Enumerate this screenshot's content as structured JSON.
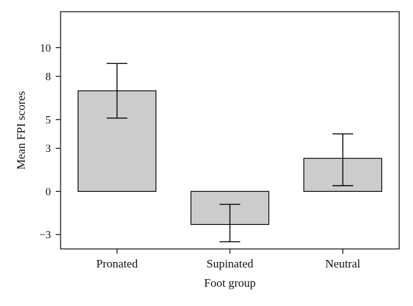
{
  "chart_data": {
    "type": "bar",
    "categories": [
      "Pronated",
      "Supinated",
      "Neutral"
    ],
    "values": [
      7.0,
      -2.3,
      2.3
    ],
    "error_low": [
      5.1,
      -3.5,
      0.4
    ],
    "error_high": [
      8.9,
      -0.9,
      4.0
    ],
    "xlabel": "Foot group",
    "ylabel": "Mean FPI scores",
    "ylim": [
      -4.0,
      12.5
    ],
    "yticks": [
      {
        "value": -3,
        "label": "−3"
      },
      {
        "value": 0,
        "label": "0"
      },
      {
        "value": 3,
        "label": "3"
      },
      {
        "value": 5,
        "label": "5"
      },
      {
        "value": 8,
        "label": "8"
      },
      {
        "value": 10,
        "label": "10"
      }
    ],
    "bar_color": "#cccccc",
    "grid": false,
    "legend": "none"
  }
}
